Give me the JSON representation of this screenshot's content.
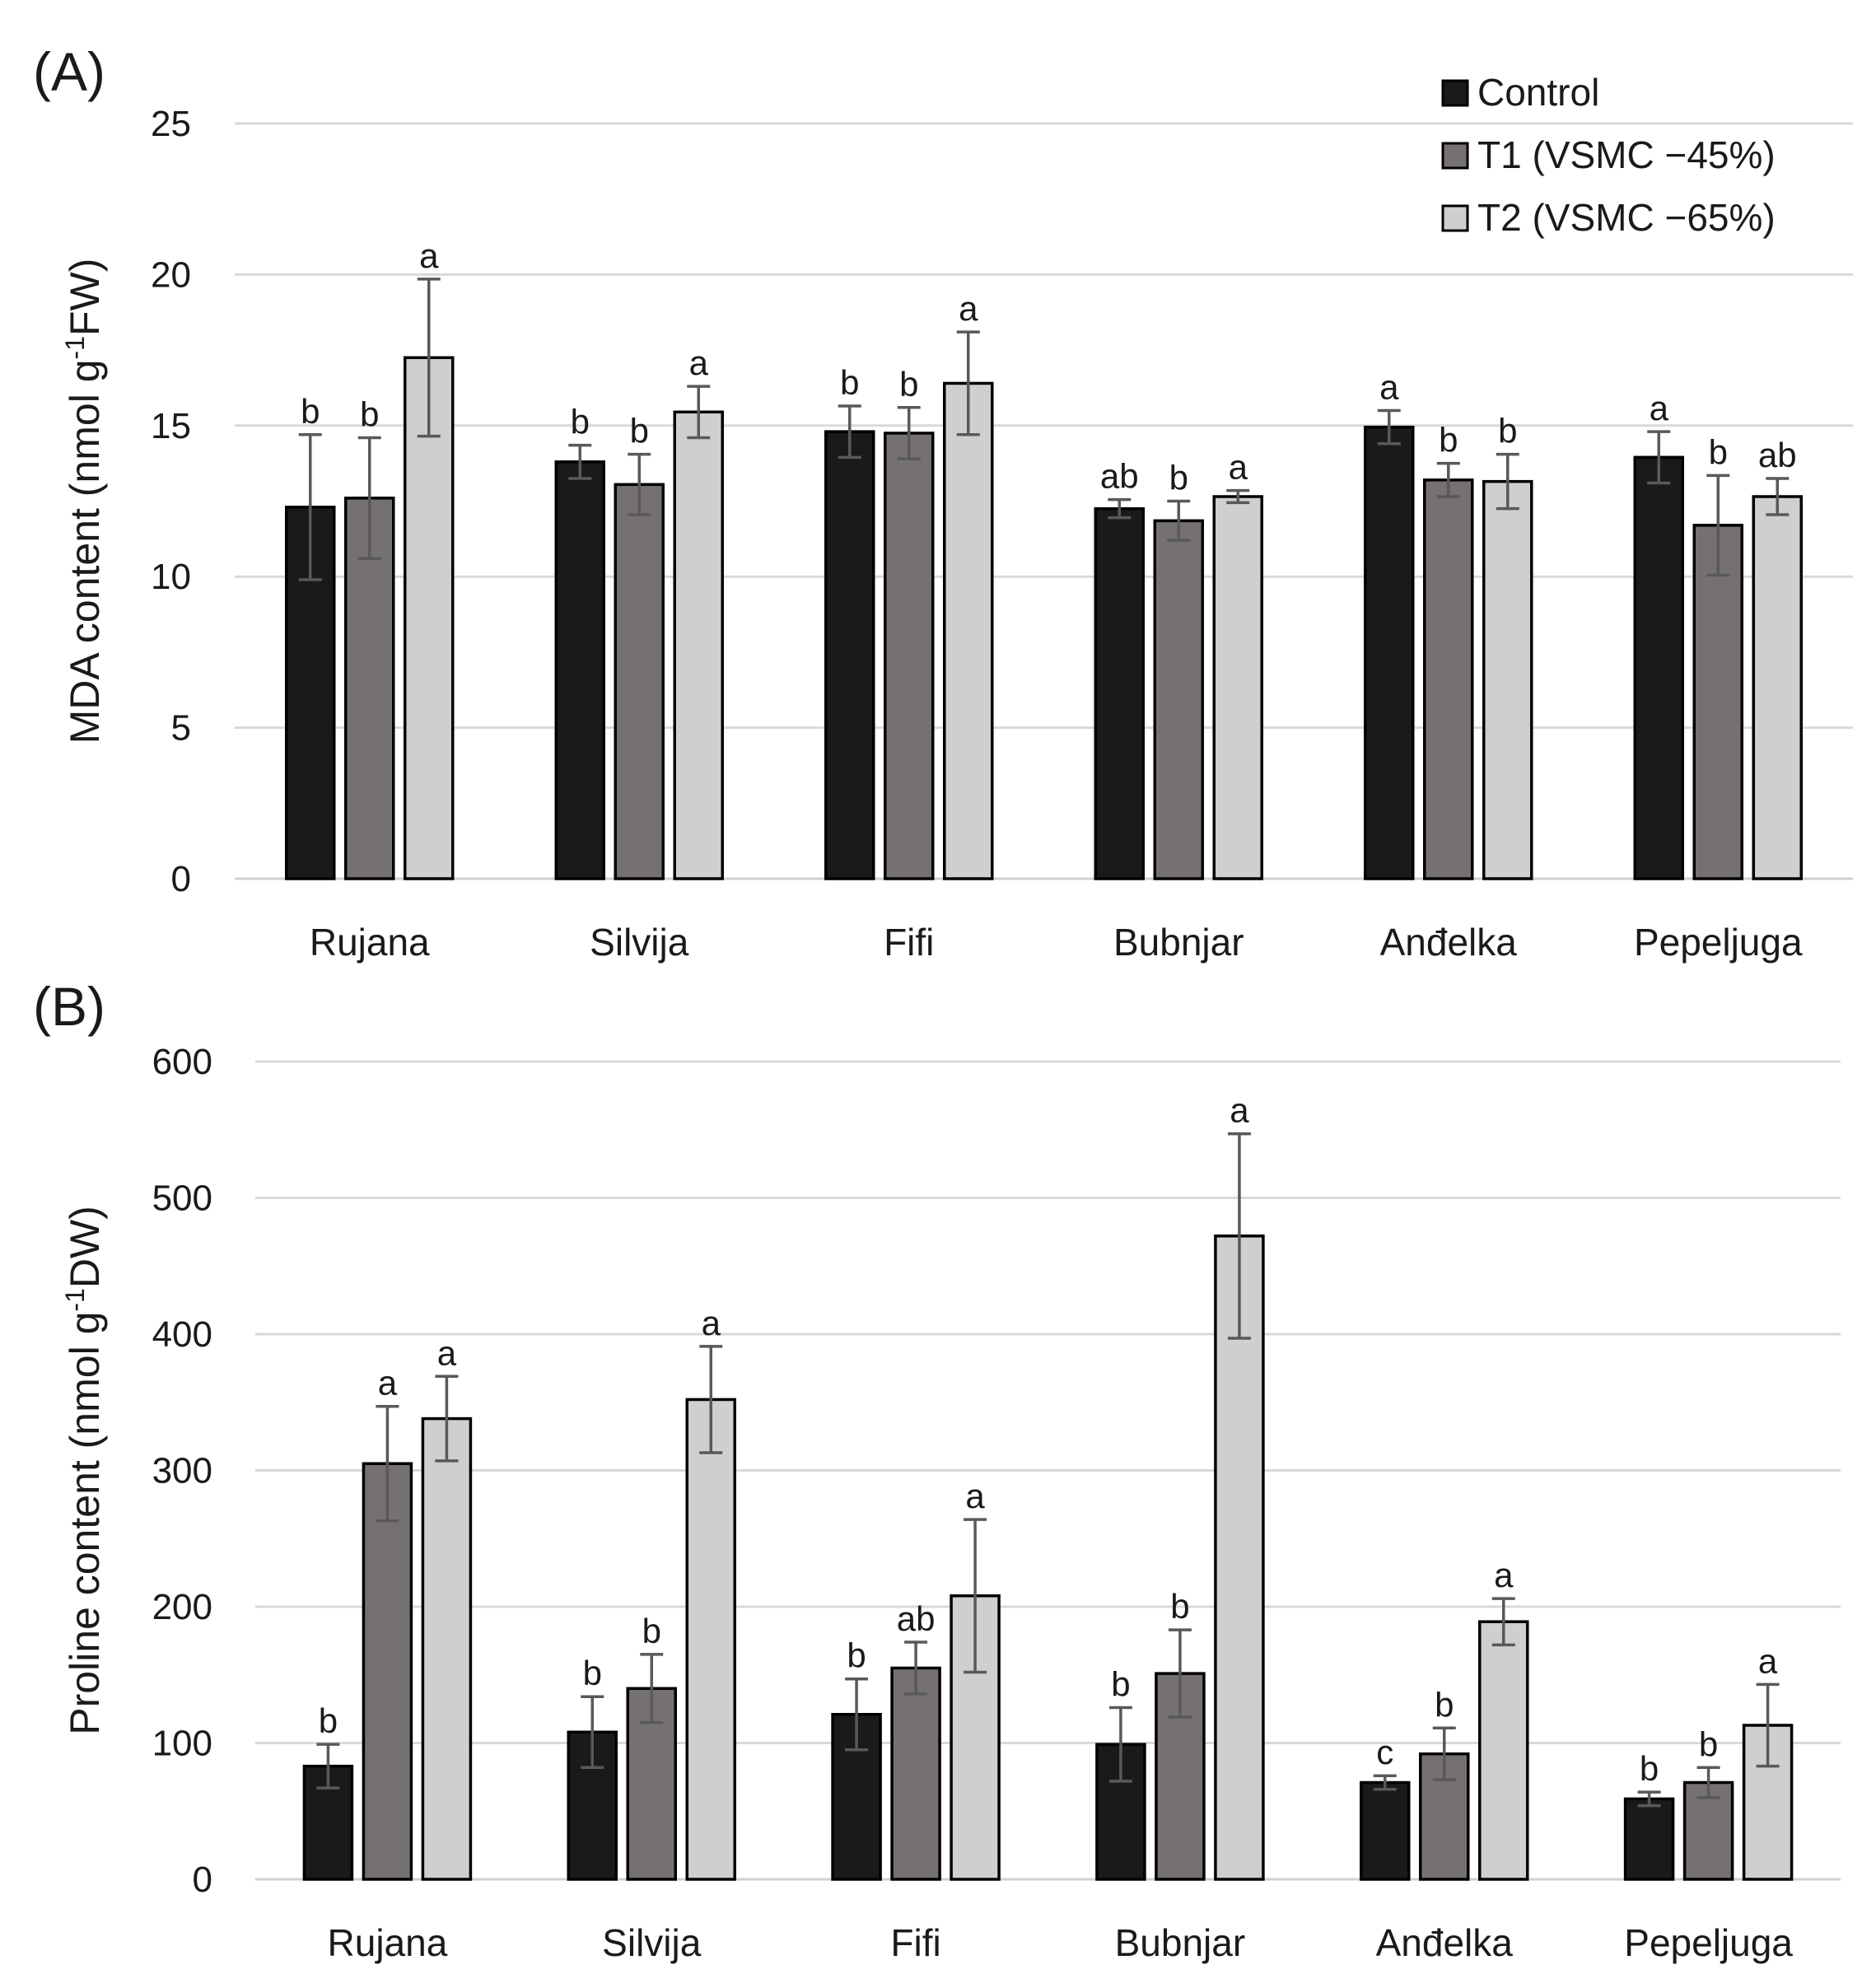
{
  "chart_data": [
    {
      "type": "bar",
      "panel_label": "(A)",
      "title": "",
      "xlabel": "",
      "ylabel": "MDA content (nmol g",
      "ylabel_sup": "-1",
      "ylabel_tail": "FW)",
      "ylim": [
        0,
        25
      ],
      "yticks": [
        0,
        5,
        10,
        15,
        20,
        25
      ],
      "grid": true,
      "categories": [
        "Rujana",
        "Silvija",
        "Fifi",
        "Bubnjar",
        "Anđelka",
        "Pepeljuga"
      ],
      "series": [
        {
          "name": "Control",
          "color": "#1a1a1a",
          "values": [
            12.3,
            13.8,
            14.8,
            12.25,
            14.95,
            13.95
          ],
          "errors": [
            2.4,
            0.55,
            0.85,
            0.3,
            0.55,
            0.85
          ],
          "letters": [
            "b",
            "b",
            "b",
            "ab",
            "a",
            "a"
          ]
        },
        {
          "name": "T1 (VSMC −45%)",
          "color": "#767171",
          "values": [
            12.6,
            13.05,
            14.75,
            11.85,
            13.2,
            11.7
          ],
          "errors": [
            2.0,
            1.0,
            0.85,
            0.65,
            0.55,
            1.65
          ],
          "letters": [
            "b",
            "b",
            "b",
            "b",
            "b",
            "b"
          ]
        },
        {
          "name": "T2 (VSMC −65%)",
          "color": "#d0cece",
          "values": [
            17.25,
            15.45,
            16.4,
            12.65,
            13.15,
            12.65
          ],
          "errors": [
            2.6,
            0.85,
            1.7,
            0.2,
            0.9,
            0.6
          ],
          "letters": [
            "a",
            "a",
            "a",
            "a",
            "b",
            "ab"
          ]
        }
      ]
    },
    {
      "type": "bar",
      "panel_label": "(B)",
      "title": "",
      "xlabel": "",
      "ylabel": "Proline content (nmol g",
      "ylabel_sup": "-1",
      "ylabel_tail": "DW)",
      "ylim": [
        0,
        600
      ],
      "yticks": [
        0,
        100,
        200,
        300,
        400,
        500,
        600
      ],
      "grid": true,
      "categories": [
        "Rujana",
        "Silvija",
        "Fifi",
        "Bubnjar",
        "Anđelka",
        "Pepeljuga"
      ],
      "series": [
        {
          "name": "Control",
          "color": "#1a1a1a",
          "values": [
            83,
            108,
            121,
            99,
            71,
            59
          ],
          "errors": [
            16,
            26,
            26,
            27,
            5,
            5
          ],
          "letters": [
            "b",
            "b",
            "b",
            "b",
            "c",
            "b"
          ]
        },
        {
          "name": "T1 (VSMC −45%)",
          "color": "#767171",
          "values": [
            305,
            140,
            155,
            151,
            92,
            71
          ],
          "errors": [
            42,
            25,
            19,
            32,
            19,
            11
          ],
          "letters": [
            "a",
            "b",
            "ab",
            "b",
            "b",
            "b"
          ]
        },
        {
          "name": "T2 (VSMC −65%)",
          "color": "#d0cece",
          "values": [
            338,
            352,
            208,
            472,
            189,
            113
          ],
          "errors": [
            31,
            39,
            56,
            75,
            17,
            30
          ],
          "letters": [
            "a",
            "a",
            "a",
            "a",
            "a",
            "a"
          ]
        }
      ]
    }
  ],
  "legend": {
    "position": "top-right",
    "items": [
      {
        "label": "Control",
        "color": "#1a1a1a"
      },
      {
        "label": "T1 (VSMC −45%)",
        "color": "#767171"
      },
      {
        "label": "T2 (VSMC −65%)",
        "color": "#d0cece"
      }
    ]
  }
}
